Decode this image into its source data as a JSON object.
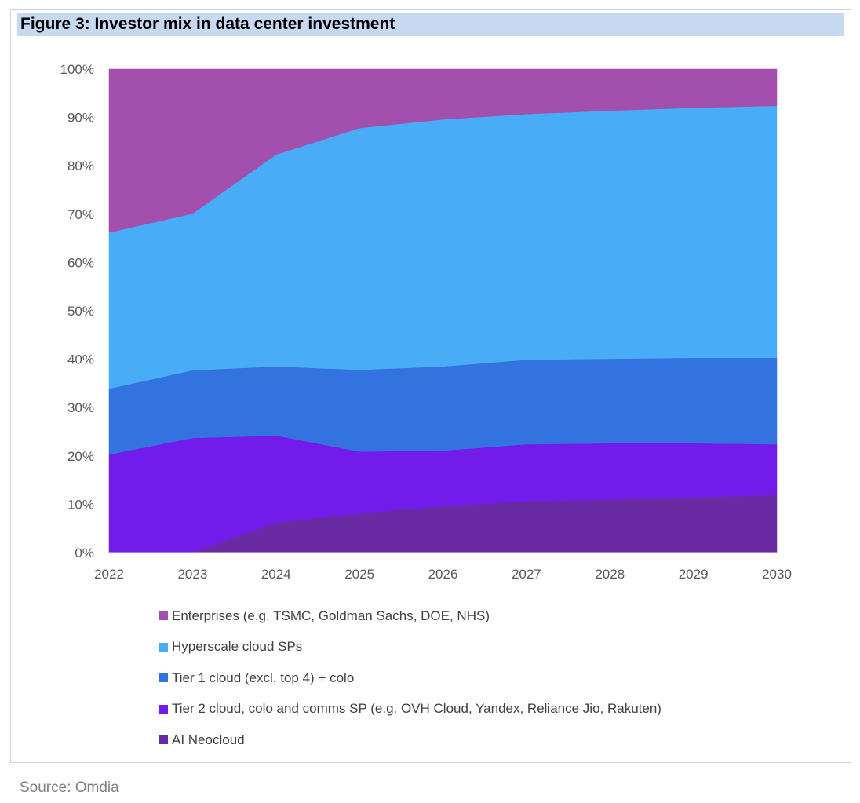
{
  "title": "Figure 3: Investor mix in data center investment",
  "source": "Source: Omdia",
  "chart_data": {
    "type": "area",
    "stacked": true,
    "title": "Figure 3: Investor mix in data center investment",
    "xlabel": "",
    "ylabel": "",
    "categories": [
      "2022",
      "2023",
      "2024",
      "2025",
      "2026",
      "2027",
      "2028",
      "2029",
      "2030"
    ],
    "ylim": [
      0,
      100
    ],
    "yticks": [
      "0%",
      "10%",
      "20%",
      "30%",
      "40%",
      "50%",
      "60%",
      "70%",
      "80%",
      "90%",
      "100%"
    ],
    "grid": false,
    "legend_position": "bottom",
    "series": [
      {
        "name": "AI Neocloud",
        "color": "#6a2aa4",
        "values": [
          0,
          0,
          6.2,
          8.1,
          9.6,
          10.6,
          11.0,
          11.4,
          11.9
        ]
      },
      {
        "name": "Tier 2 cloud, colo and comms SP (e.g. OVH Cloud, Yandex, Reliance Jio, Rakuten)",
        "color": "#721ceb",
        "values": [
          20.3,
          23.7,
          18.0,
          12.8,
          11.5,
          11.8,
          11.6,
          11.2,
          10.5
        ]
      },
      {
        "name": "Tier 1 cloud (excl. top 4) + colo",
        "color": "#3373e0",
        "values": [
          13.6,
          14.0,
          14.3,
          16.9,
          17.4,
          17.5,
          17.5,
          17.7,
          17.9
        ]
      },
      {
        "name": "Hyperscale cloud SPs",
        "color": "#48acf7",
        "values": [
          32.3,
          32.4,
          43.8,
          50.0,
          51.1,
          50.8,
          51.3,
          51.7,
          52.1
        ]
      },
      {
        "name": "Enterprises (e.g. TSMC, Goldman Sachs, DOE, NHS)",
        "color": "#a34fad",
        "values": [
          33.8,
          29.9,
          17.7,
          12.2,
          10.4,
          9.3,
          8.6,
          8.0,
          7.6
        ]
      }
    ]
  }
}
